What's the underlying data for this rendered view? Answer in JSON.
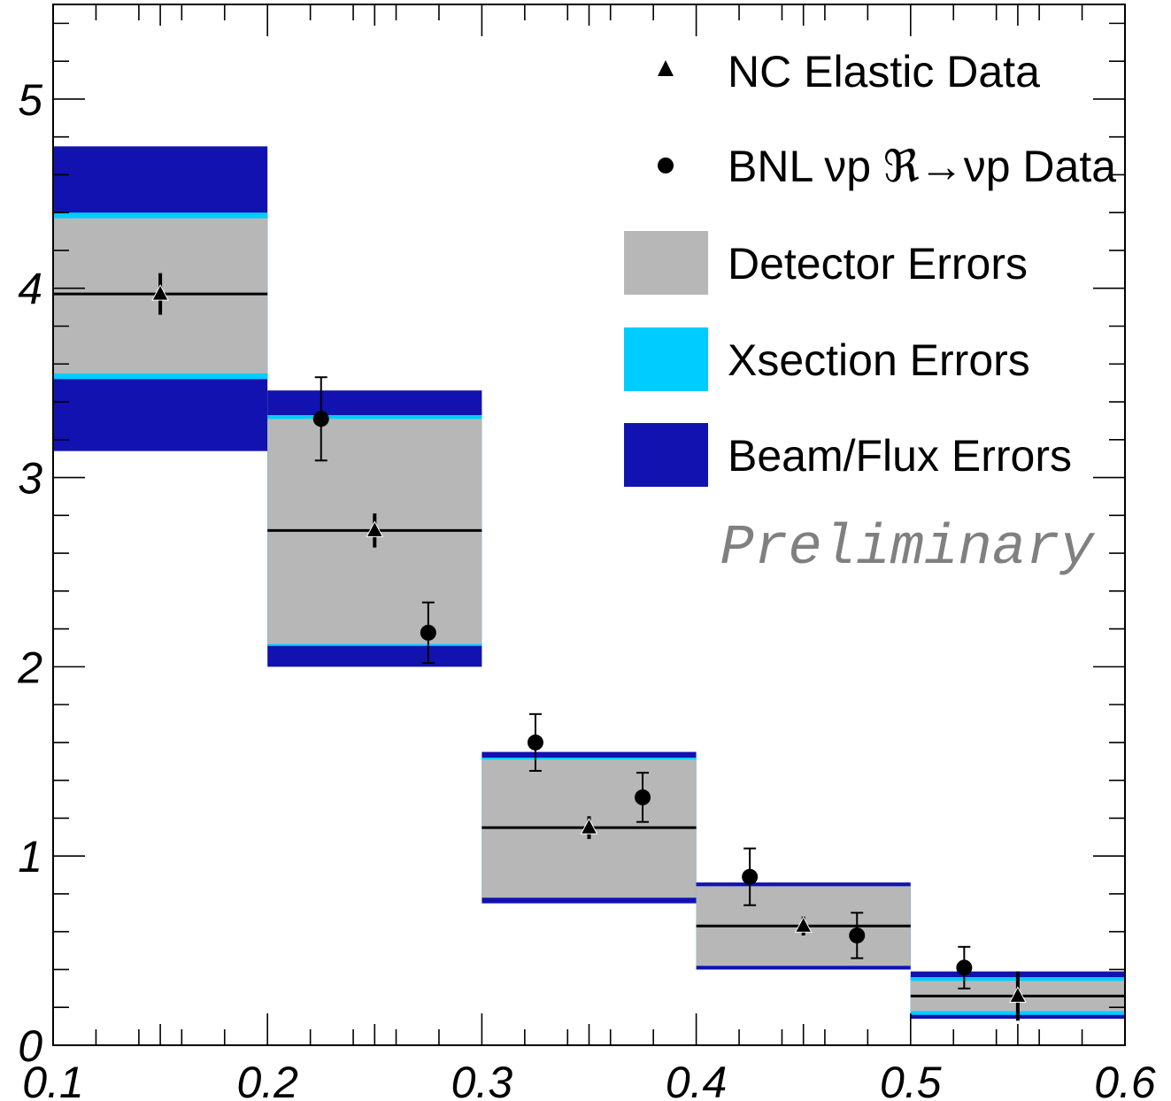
{
  "chart_data": {
    "type": "scatter",
    "title": "",
    "xlabel": "",
    "ylabel": "",
    "xlim": [
      0.1,
      0.6
    ],
    "ylim": [
      0,
      5.5
    ],
    "x_ticks": [
      "0.1",
      "0.2",
      "0.3",
      "0.4",
      "0.5",
      "0.6"
    ],
    "y_ticks": [
      "0",
      "1",
      "2",
      "3",
      "4",
      "5"
    ],
    "grid": false,
    "legend_position": "top-right",
    "colors": {
      "detector": "#b7b7b7",
      "xsection": "#00ccff",
      "beam": "#1212b0",
      "markers": "#000000",
      "annotation": "#808080"
    },
    "bins": [
      {
        "x_low": 0.1,
        "x_high": 0.2,
        "value": 3.97,
        "detector": [
          3.55,
          4.37
        ],
        "xsection": [
          3.52,
          4.4
        ],
        "beam": [
          3.14,
          4.75
        ]
      },
      {
        "x_low": 0.2,
        "x_high": 0.3,
        "value": 2.72,
        "detector": [
          2.12,
          3.31
        ],
        "xsection": [
          2.11,
          3.33
        ],
        "beam": [
          2.0,
          3.46
        ]
      },
      {
        "x_low": 0.3,
        "x_high": 0.4,
        "value": 1.15,
        "detector": [
          0.78,
          1.51
        ],
        "xsection": [
          0.78,
          1.52
        ],
        "beam": [
          0.75,
          1.55
        ]
      },
      {
        "x_low": 0.4,
        "x_high": 0.5,
        "value": 0.63,
        "detector": [
          0.42,
          0.84
        ],
        "xsection": [
          0.42,
          0.84
        ],
        "beam": [
          0.4,
          0.86
        ]
      },
      {
        "x_low": 0.5,
        "x_high": 0.6,
        "value": 0.26,
        "detector": [
          0.18,
          0.34
        ],
        "xsection": [
          0.16,
          0.36
        ],
        "beam": [
          0.14,
          0.39
        ]
      }
    ],
    "series": [
      {
        "name": "NC Elastic Data",
        "marker": "triangle",
        "points": [
          {
            "x": 0.15,
            "y": 3.97,
            "err_low": 0.11,
            "err_high": 0.11
          },
          {
            "x": 0.25,
            "y": 2.72,
            "err_low": 0.09,
            "err_high": 0.09
          },
          {
            "x": 0.35,
            "y": 1.15,
            "err_low": 0.06,
            "err_high": 0.06
          },
          {
            "x": 0.45,
            "y": 0.63,
            "err_low": 0.05,
            "err_high": 0.05
          },
          {
            "x": 0.55,
            "y": 0.26,
            "err_low": 0.13,
            "err_high": 0.13
          }
        ]
      },
      {
        "name": "BNL νp ℜ→νp Data",
        "marker": "circle",
        "points": [
          {
            "x": 0.225,
            "y": 3.31,
            "err_low": 0.22,
            "err_high": 0.22
          },
          {
            "x": 0.275,
            "y": 2.18,
            "err_low": 0.16,
            "err_high": 0.16
          },
          {
            "x": 0.325,
            "y": 1.6,
            "err_low": 0.15,
            "err_high": 0.15
          },
          {
            "x": 0.375,
            "y": 1.31,
            "err_low": 0.13,
            "err_high": 0.13
          },
          {
            "x": 0.425,
            "y": 0.89,
            "err_low": 0.15,
            "err_high": 0.15
          },
          {
            "x": 0.475,
            "y": 0.58,
            "err_low": 0.12,
            "err_high": 0.12
          },
          {
            "x": 0.525,
            "y": 0.41,
            "err_low": 0.11,
            "err_high": 0.11
          }
        ]
      }
    ],
    "legend": [
      {
        "label": "NC Elastic Data",
        "kind": "triangle"
      },
      {
        "label": "BNL νp ℜ→νp Data",
        "kind": "circle"
      },
      {
        "label": "Detector Errors",
        "kind": "box",
        "color_key": "detector"
      },
      {
        "label": "Xsection Errors",
        "kind": "box",
        "color_key": "xsection"
      },
      {
        "label": "Beam/Flux Errors",
        "kind": "box",
        "color_key": "beam"
      }
    ],
    "annotation": "Preliminary"
  }
}
